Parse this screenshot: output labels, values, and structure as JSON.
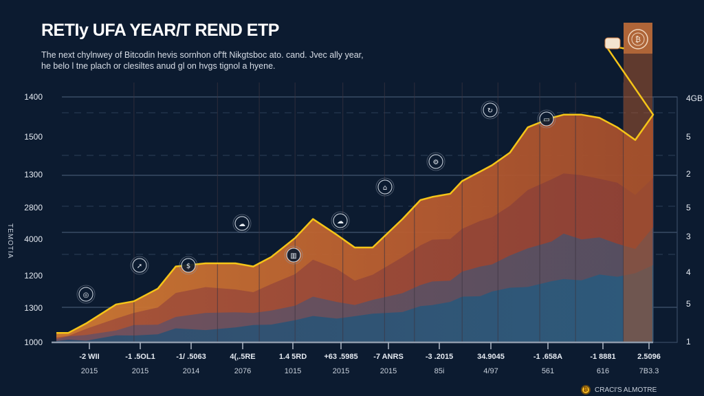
{
  "header": {
    "title": "RETIy UFA YEAR/T REND ETP",
    "subtitle": "The next chylnwey of Bitcodin hevis sornhon of'ft Nikgtsboc ato. cand. Jvec ally year, he belo l tne plach or clesiltes anud gl on hvgs tignol a hyene."
  },
  "legend": {
    "icon": "bitcoin-coin-icon",
    "icon_glyph": "₿",
    "label": "CRACI'S ALMOTRE"
  },
  "colors": {
    "background": "#0c1b30",
    "line": "#f5c518",
    "layer_top": "#c2652c",
    "layer_mid": "#8c4a3e",
    "layer_low": "#4f4a5c",
    "layer_base": "#2a5272",
    "grid": "#3b4d66"
  },
  "chart_data": {
    "type": "area",
    "title": "RETIy UFA YEAR/T REND ETP",
    "xlabel": "",
    "ylabel": "TEMOTIA",
    "grid": true,
    "legend_position": "bottom-right",
    "y_ticks_left": [
      "1400",
      "1500",
      "1300",
      "2800",
      "4000",
      "1200",
      "1300",
      "1000"
    ],
    "y_ticks_right": [
      "4GB",
      "5",
      "2",
      "5",
      "3",
      "4",
      "5",
      "1"
    ],
    "x_ticks": [
      {
        "label": "-2 WII",
        "year": "2015"
      },
      {
        "label": "-1 .5OL1",
        "year": "2015"
      },
      {
        "label": "-1/ .5063",
        "year": "2014"
      },
      {
        "label": "4(,.5RE",
        "year": "2076"
      },
      {
        "label": "1.4 5RD",
        "year": "1015"
      },
      {
        "label": "+63 .5985",
        "year": "2015"
      },
      {
        "label": "-7 ANRS",
        "year": "2015"
      },
      {
        "label": "-3 .2015",
        "year": "85i"
      },
      {
        "label": "34.9045",
        "year": "4/97"
      },
      {
        "label": "-1 .658A",
        "year": "561"
      },
      {
        "label": "-1 8881",
        "year": "616"
      },
      {
        "label": "2.5096",
        "year": "7B3.3"
      }
    ],
    "y_range": [
      0,
      100
    ],
    "x_range": [
      0,
      100
    ],
    "series": [
      {
        "name": "trend",
        "x": [
          0,
          2,
          5,
          10,
          13,
          17,
          20,
          25,
          30,
          33,
          36,
          40,
          43,
          47,
          50,
          53,
          58,
          61,
          63,
          66,
          68,
          71,
          73,
          76,
          79,
          83,
          85,
          88,
          91,
          94,
          97,
          100
        ],
        "y": [
          3,
          3,
          6,
          12,
          13,
          17,
          24,
          25,
          25,
          24,
          27,
          33,
          39,
          34,
          30,
          30,
          39,
          45,
          46,
          47,
          51,
          54,
          56,
          60,
          68,
          71,
          72,
          72,
          71,
          68,
          64,
          72
        ]
      }
    ],
    "stack_layers": [
      {
        "name": "upper",
        "y": [
          3,
          3,
          6,
          12,
          13,
          17,
          24,
          25,
          25,
          24,
          27,
          33,
          39,
          34,
          30,
          30,
          39,
          45,
          46,
          47,
          51,
          54,
          56,
          60,
          68,
          71,
          72,
          72,
          71,
          68,
          64,
          72
        ]
      },
      {
        "name": "middle",
        "y": [
          2,
          2,
          4,
          8,
          9,
          11,
          16,
          17,
          17,
          16,
          18,
          22,
          26,
          23,
          20,
          21,
          27,
          31,
          32,
          33,
          36,
          38,
          40,
          43,
          48,
          52,
          53,
          53,
          52,
          50,
          47,
          52
        ]
      },
      {
        "name": "lower",
        "y": [
          1.5,
          1.5,
          2.5,
          4,
          5,
          6,
          8,
          9,
          10,
          9,
          10,
          12,
          14,
          13,
          12,
          13,
          16,
          18,
          19,
          20,
          22,
          24,
          25,
          27,
          30,
          32,
          34,
          33,
          33,
          31,
          30,
          36
        ]
      },
      {
        "name": "base",
        "y": [
          0.5,
          0.5,
          1,
          2,
          2,
          3,
          4,
          4,
          5,
          5,
          6,
          7,
          8,
          8,
          8,
          9,
          10,
          11,
          12,
          13,
          14,
          15,
          16,
          17,
          18,
          19,
          20,
          20,
          21,
          21,
          22,
          24
        ]
      }
    ],
    "markers": [
      {
        "x": 10,
        "y": 12,
        "icon": "globe-icon"
      },
      {
        "x": 17,
        "y": 17,
        "icon": "rocket-icon"
      },
      {
        "x": 26,
        "y": 25,
        "icon": "dollar-icon"
      },
      {
        "x": 36,
        "y": 27,
        "icon": "cloud-icon"
      },
      {
        "x": 47,
        "y": 34,
        "icon": "chart-icon"
      },
      {
        "x": 57,
        "y": 30,
        "icon": "cloud-icon"
      },
      {
        "x": 66,
        "y": 47,
        "icon": "bank-icon"
      },
      {
        "x": 73,
        "y": 56,
        "icon": "tools-icon"
      },
      {
        "x": 83,
        "y": 71,
        "icon": "refresh-icon"
      },
      {
        "x": 96,
        "y": 64,
        "icon": "card-icon"
      }
    ],
    "peak_markers": [
      {
        "icon": "wallet-icon"
      },
      {
        "icon": "bitcoin-icon"
      }
    ]
  }
}
